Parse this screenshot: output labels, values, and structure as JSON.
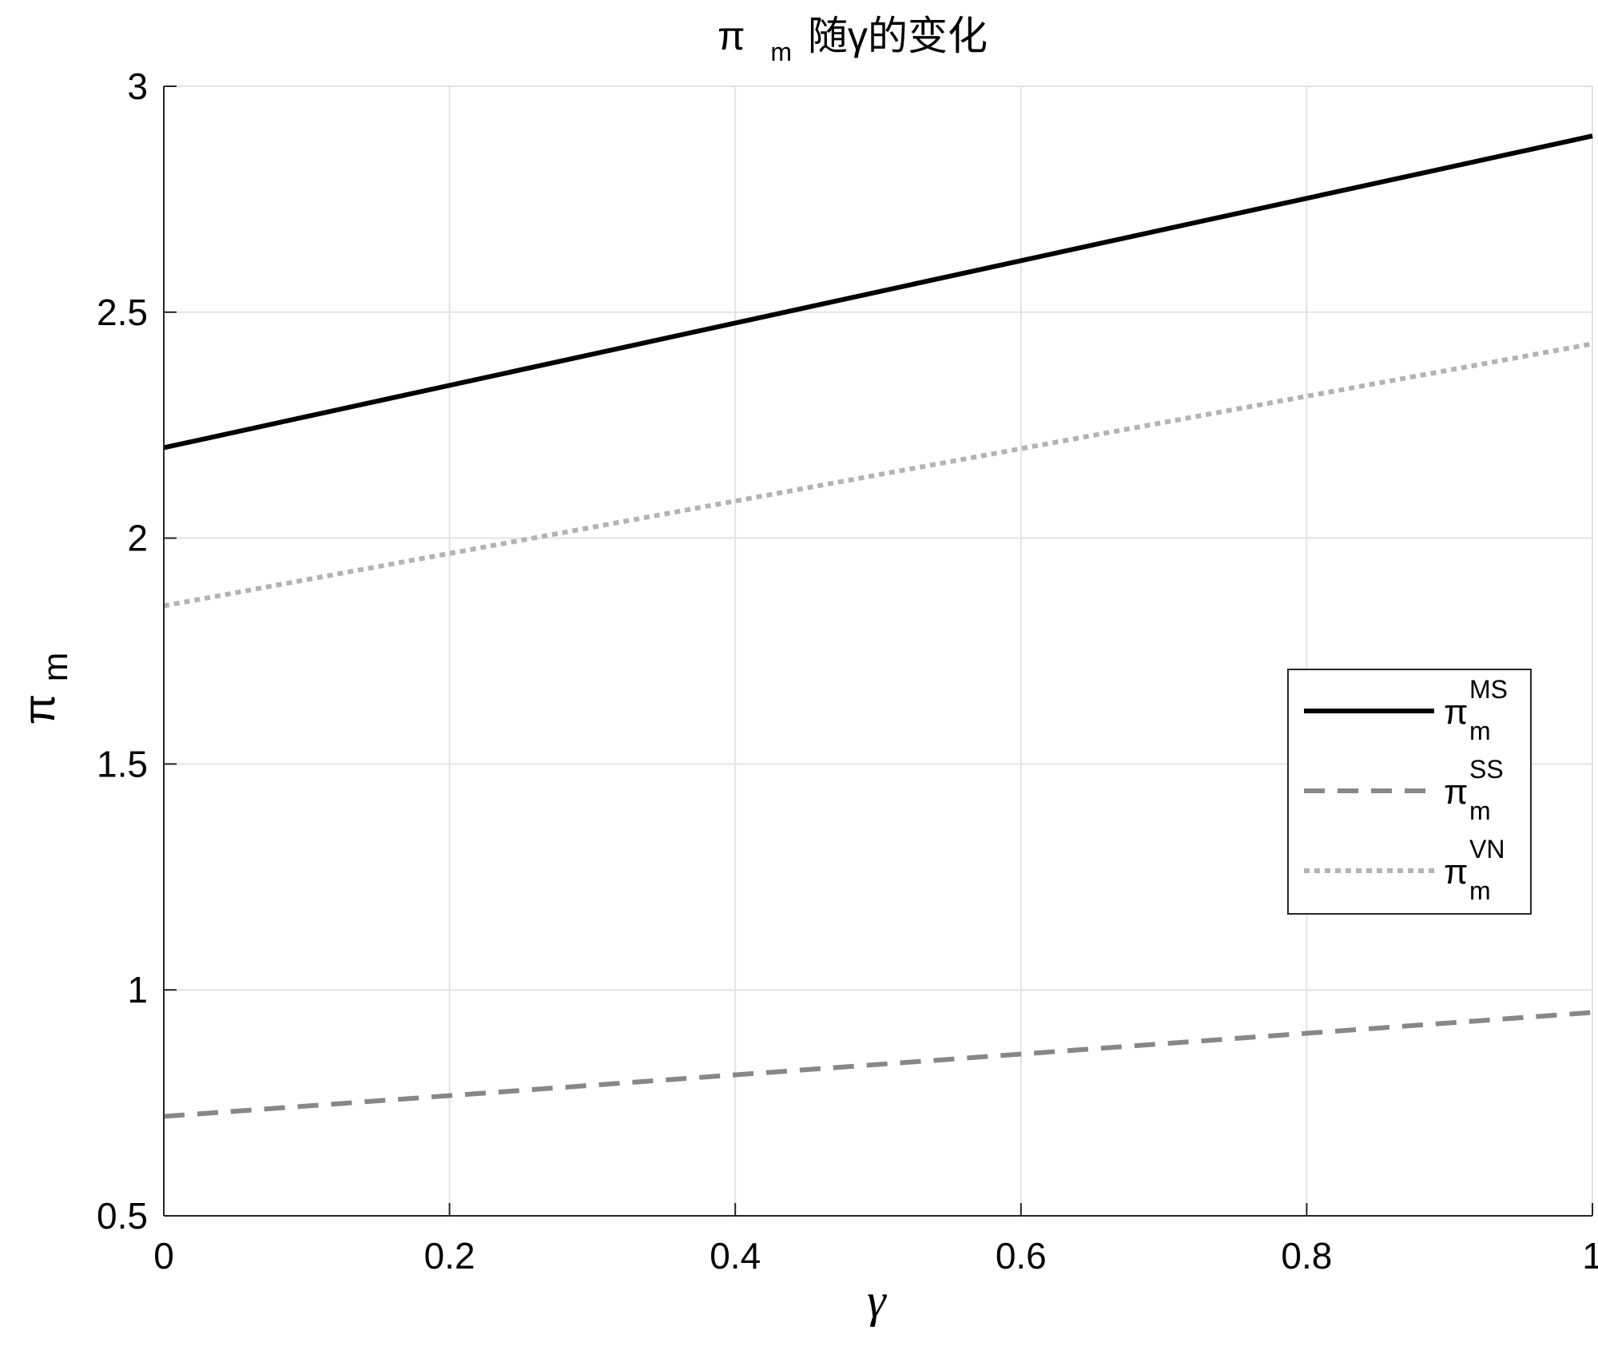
{
  "chart_data": {
    "type": "line",
    "title": {
      "symbol": "π",
      "subscript": "m",
      "rest": "随γ的变化"
    },
    "xlabel": "γ",
    "ylabel": {
      "symbol": "π",
      "subscript": "m"
    },
    "xlim": [
      0,
      1
    ],
    "ylim": [
      0.5,
      3
    ],
    "xticks": [
      0,
      0.2,
      0.4,
      0.6,
      0.8,
      1
    ],
    "xtick_labels": [
      "0",
      "0.2",
      "0.4",
      "0.6",
      "0.8",
      "1"
    ],
    "yticks": [
      0.5,
      1,
      1.5,
      2,
      2.5,
      3
    ],
    "ytick_labels": [
      "0.5",
      "1",
      "1.5",
      "2",
      "2.5",
      "3"
    ],
    "grid": true,
    "legend_position": "right",
    "series": [
      {
        "name": "MS",
        "symbol": "π",
        "subscript": "m",
        "superscript": "MS",
        "style": "solid",
        "color": "#000000",
        "x": [
          0,
          1
        ],
        "y": [
          2.2,
          2.89
        ]
      },
      {
        "name": "SS",
        "symbol": "π",
        "subscript": "m",
        "superscript": "SS",
        "style": "dashed",
        "color": "#878787",
        "x": [
          0,
          1
        ],
        "y": [
          0.72,
          0.95
        ]
      },
      {
        "name": "VN",
        "symbol": "π",
        "subscript": "m",
        "superscript": "VN",
        "style": "dotted",
        "color": "#b3b3b3",
        "x": [
          0,
          1
        ],
        "y": [
          1.85,
          2.43
        ]
      }
    ]
  }
}
